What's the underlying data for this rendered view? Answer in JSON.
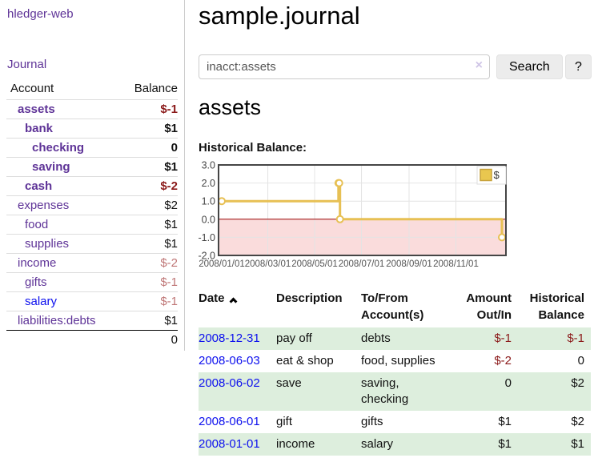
{
  "app": {
    "title": "hledger-web"
  },
  "sidebar": {
    "journal_link": "Journal",
    "accounts_table": {
      "headers": {
        "account": "Account",
        "balance": "Balance"
      },
      "rows": [
        {
          "name": "assets",
          "balance": "$-1",
          "depth": 1,
          "bold": true,
          "neg": "strong",
          "blue": false
        },
        {
          "name": "bank",
          "balance": "$1",
          "depth": 2,
          "bold": true,
          "neg": null,
          "blue": false
        },
        {
          "name": "checking",
          "balance": "0",
          "depth": 3,
          "bold": true,
          "neg": null,
          "blue": false
        },
        {
          "name": "saving",
          "balance": "$1",
          "depth": 3,
          "bold": true,
          "neg": null,
          "blue": false
        },
        {
          "name": "cash",
          "balance": "$-2",
          "depth": 2,
          "bold": true,
          "neg": "strong",
          "blue": false
        },
        {
          "name": "expenses",
          "balance": "$2",
          "depth": 1,
          "bold": false,
          "neg": null,
          "blue": false
        },
        {
          "name": "food",
          "balance": "$1",
          "depth": 2,
          "bold": false,
          "neg": null,
          "blue": false
        },
        {
          "name": "supplies",
          "balance": "$1",
          "depth": 2,
          "bold": false,
          "neg": null,
          "blue": false
        },
        {
          "name": "income",
          "balance": "$-2",
          "depth": 1,
          "bold": false,
          "neg": "muted",
          "blue": false
        },
        {
          "name": "gifts",
          "balance": "$-1",
          "depth": 2,
          "bold": false,
          "neg": "muted",
          "blue": false
        },
        {
          "name": "salary",
          "balance": "$-1",
          "depth": 2,
          "bold": false,
          "neg": "muted",
          "blue": true
        },
        {
          "name": "liabilities:debts",
          "balance": "$1",
          "depth": 1,
          "bold": false,
          "neg": null,
          "blue": false
        }
      ],
      "total": "0"
    }
  },
  "main": {
    "title": "sample.journal",
    "search": {
      "value": "inacct:assets",
      "clear_icon": "×",
      "search_button": "Search",
      "help_button": "?"
    },
    "account_heading": "assets",
    "chart_label": "Historical Balance:"
  },
  "chart_data": {
    "type": "line",
    "step": true,
    "title": "Historical Balance",
    "series": [
      {
        "name": "$",
        "color": "#e7c054",
        "points": [
          [
            "2008-01-01",
            1.0
          ],
          [
            "2008-06-01",
            2.0
          ],
          [
            "2008-06-02",
            2.0
          ],
          [
            "2008-06-03",
            0.0
          ],
          [
            "2008-12-31",
            -1.0
          ]
        ]
      }
    ],
    "xdomain": [
      "2008-01-01",
      "2008-12-31"
    ],
    "ylim": [
      -2.0,
      3.0
    ],
    "yticks": [
      "3.0",
      "2.0",
      "1.0",
      "0.0",
      "-1.0",
      "-2.0"
    ],
    "xticks": [
      {
        "date": "2008-01-01",
        "label": "2008/01/01"
      },
      {
        "date": "2008-03-01",
        "label": "2008/03/01"
      },
      {
        "date": "2008-05-01",
        "label": "2008/05/01"
      },
      {
        "date": "2008-07-01",
        "label": "2008/07/01"
      },
      {
        "date": "2008-09-01",
        "label": "2008/09/01"
      },
      {
        "date": "2008-11-01",
        "label": "2008/11/01"
      }
    ],
    "legend": {
      "label": "$",
      "position": "top-right",
      "swatch_color": "#e9c74f"
    },
    "grid": true,
    "zero_line_color": "#990000",
    "negative_region_color": "#fadcdc",
    "border_color": "#454545"
  },
  "register": {
    "headers": {
      "date": "Date",
      "description": "Description",
      "accounts": "To/From Account(s)",
      "amount": "Amount Out/In",
      "balance": "Historical Balance"
    },
    "rows": [
      {
        "date": "2008-12-31",
        "description": "pay off",
        "accounts": "debts",
        "amount": "$-1",
        "amount_negative": true,
        "balance": "$-1",
        "balance_negative": true
      },
      {
        "date": "2008-06-03",
        "description": "eat & shop",
        "accounts": "food, supplies",
        "amount": "$-2",
        "amount_negative": true,
        "balance": "0",
        "balance_negative": false
      },
      {
        "date": "2008-06-02",
        "description": "save",
        "accounts": "saving, checking",
        "amount": "0",
        "amount_negative": false,
        "balance": "$2",
        "balance_negative": false
      },
      {
        "date": "2008-06-01",
        "description": "gift",
        "accounts": "gifts",
        "amount": "$1",
        "amount_negative": false,
        "balance": "$2",
        "balance_negative": false
      },
      {
        "date": "2008-01-01",
        "description": "income",
        "accounts": "salary",
        "amount": "$1",
        "amount_negative": false,
        "balance": "$1",
        "balance_negative": false
      }
    ]
  }
}
